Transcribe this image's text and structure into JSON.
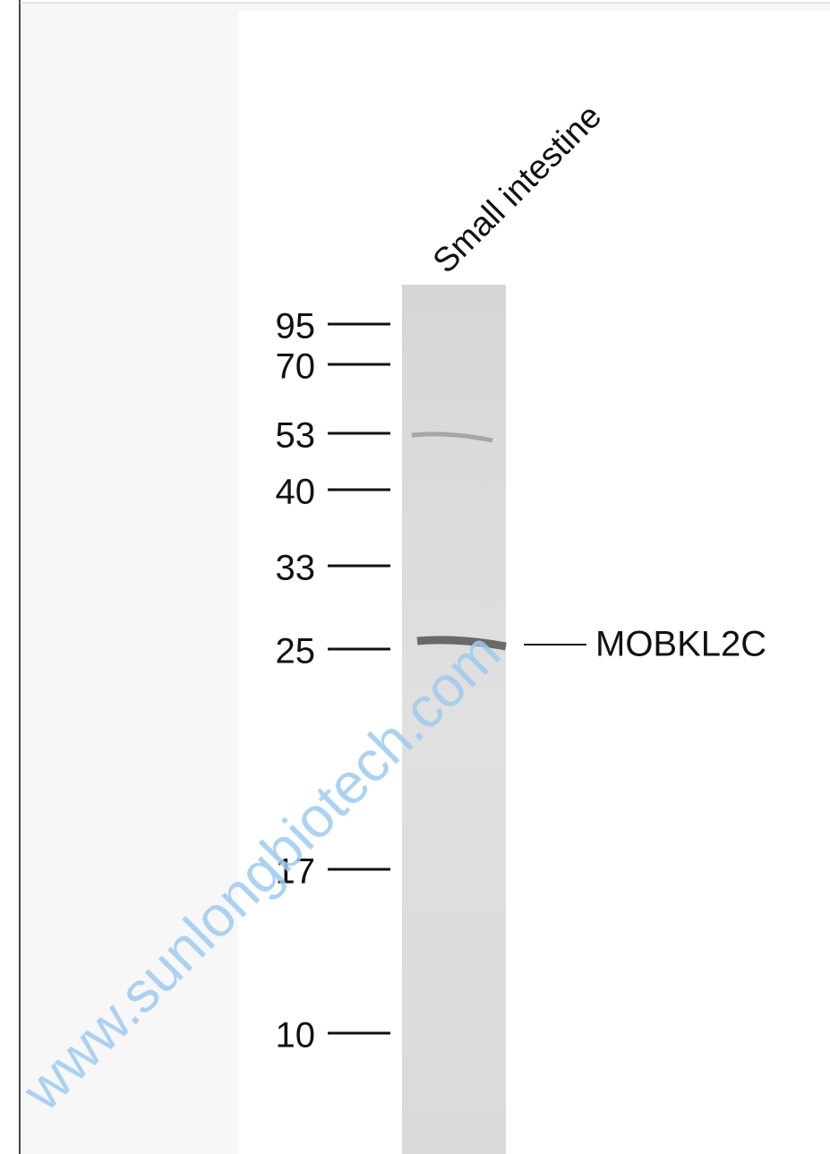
{
  "figure": {
    "lane_label": "Small intestine",
    "markers": [
      "95",
      "70",
      "53",
      "40",
      "33",
      "25",
      "17",
      "10"
    ],
    "band_label": "MOBKL2C",
    "watermark": "www.sunlongbiotech.com"
  }
}
